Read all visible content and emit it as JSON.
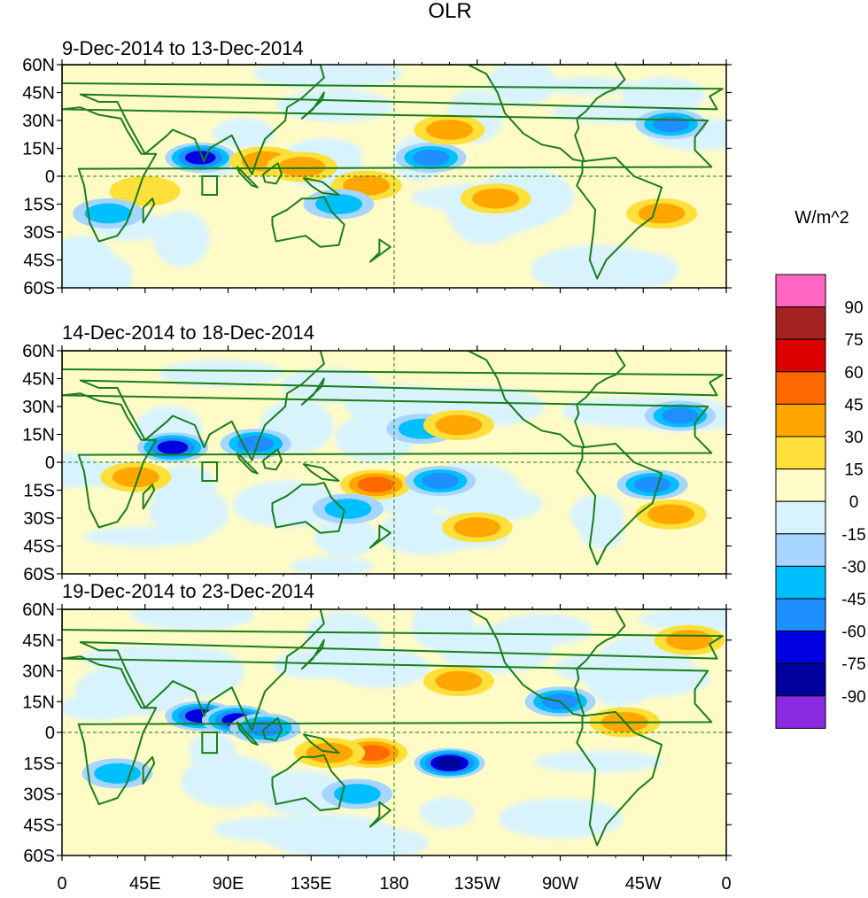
{
  "chart_data": {
    "type": "heatmap",
    "title": "OLR",
    "colorbar": {
      "units": "W/m^2",
      "levels": [
        "90",
        "75",
        "60",
        "45",
        "30",
        "15",
        "0",
        "-15",
        "-30",
        "-45",
        "-60",
        "-75",
        "-90"
      ],
      "colors": [
        "#ff66c2",
        "#a52222",
        "#dd0000",
        "#ff6a00",
        "#ffa600",
        "#ffdf3a",
        "#fffbc6",
        "#d6f3ff",
        "#a6d6ff",
        "#00bfff",
        "#1e8fff",
        "#0000e0",
        "#00009c",
        "#8a2be2"
      ]
    },
    "x_ticks": [
      "0",
      "45E",
      "90E",
      "135E",
      "180",
      "135W",
      "90W",
      "45W",
      "0"
    ],
    "y_ticks": [
      "60N",
      "45N",
      "30N",
      "15N",
      "0",
      "15S",
      "30S",
      "45S",
      "60S"
    ],
    "lon_range": [
      0,
      360
    ],
    "lat_range": [
      -60,
      60
    ],
    "panels": [
      {
        "period": "9-Dec-2014 to 13-Dec-2014",
        "anomalies": [
          {
            "lon": 75,
            "lat": 10,
            "value": -60
          },
          {
            "lon": 110,
            "lat": 8,
            "value": 30
          },
          {
            "lon": 130,
            "lat": 5,
            "value": 30
          },
          {
            "lon": 165,
            "lat": -5,
            "value": 30
          },
          {
            "lon": 150,
            "lat": -15,
            "value": -30
          },
          {
            "lon": 200,
            "lat": 10,
            "value": -45
          },
          {
            "lon": 210,
            "lat": 25,
            "value": 30
          },
          {
            "lon": 235,
            "lat": -12,
            "value": 30
          },
          {
            "lon": 325,
            "lat": -20,
            "value": 30
          },
          {
            "lon": 330,
            "lat": 28,
            "value": -45
          },
          {
            "lon": 45,
            "lat": -8,
            "value": 15
          },
          {
            "lon": 25,
            "lat": -20,
            "value": -30
          }
        ]
      },
      {
        "period": "14-Dec-2014 to 18-Dec-2014",
        "anomalies": [
          {
            "lon": 60,
            "lat": 8,
            "value": -60
          },
          {
            "lon": 105,
            "lat": 10,
            "value": -45
          },
          {
            "lon": 170,
            "lat": -12,
            "value": 45
          },
          {
            "lon": 205,
            "lat": -10,
            "value": -45
          },
          {
            "lon": 195,
            "lat": 18,
            "value": -30
          },
          {
            "lon": 215,
            "lat": 20,
            "value": 30
          },
          {
            "lon": 225,
            "lat": -35,
            "value": 30
          },
          {
            "lon": 320,
            "lat": -12,
            "value": -45
          },
          {
            "lon": 335,
            "lat": 25,
            "value": -45
          },
          {
            "lon": 40,
            "lat": -8,
            "value": 30
          },
          {
            "lon": 155,
            "lat": -25,
            "value": -30
          },
          {
            "lon": 330,
            "lat": -28,
            "value": 30
          }
        ]
      },
      {
        "period": "19-Dec-2014 to 23-Dec-2014",
        "anomalies": [
          {
            "lon": 75,
            "lat": 8,
            "value": -60
          },
          {
            "lon": 95,
            "lat": 6,
            "value": -60
          },
          {
            "lon": 110,
            "lat": 2,
            "value": -45
          },
          {
            "lon": 210,
            "lat": -15,
            "value": -75
          },
          {
            "lon": 168,
            "lat": -10,
            "value": 45
          },
          {
            "lon": 145,
            "lat": -10,
            "value": 30
          },
          {
            "lon": 270,
            "lat": 15,
            "value": -45
          },
          {
            "lon": 160,
            "lat": -30,
            "value": -30
          },
          {
            "lon": 30,
            "lat": -20,
            "value": -30
          },
          {
            "lon": 340,
            "lat": 45,
            "value": 30
          },
          {
            "lon": 215,
            "lat": 25,
            "value": 30
          },
          {
            "lon": 305,
            "lat": 5,
            "value": 30
          }
        ]
      }
    ]
  }
}
